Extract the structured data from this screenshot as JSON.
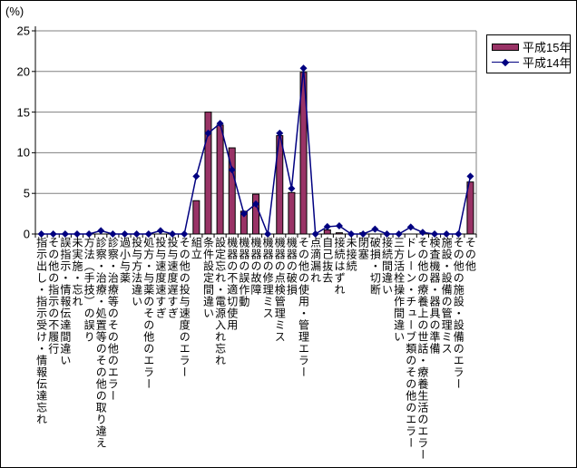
{
  "figure": {
    "unit_label": "(%)",
    "background_color": "#ffffff",
    "border_color": "#000000",
    "gridline_color": "#808080",
    "axis_color": "#000000"
  },
  "legend": {
    "items": [
      {
        "label": "平成15年",
        "type": "bar",
        "color": "#993366"
      },
      {
        "label": "平成14年",
        "type": "line",
        "color": "#000080"
      }
    ]
  },
  "chart_data": {
    "type": "bar",
    "subtype": "bar+line combo",
    "title": "",
    "xlabel": "",
    "ylabel": "(%)",
    "ylim": [
      0,
      25
    ],
    "yticks": [
      0,
      5,
      10,
      15,
      20,
      25
    ],
    "grid": true,
    "legend_position": "top-right",
    "categories": [
      "指示出し・指示受け・情報伝達忘れ",
      "その他の指示の不履行",
      "誤指示・情報伝達間違い",
      "未実施・忘れ",
      "方法（手技）の誤り",
      "診察・治療・処置等のその他の取り違え",
      "診察・治療等のその他のエラー",
      "過小与薬",
      "投与方法違い",
      "処方・与薬のその他のエラー",
      "投与速度速すぎ",
      "投与速度遅すぎ",
      "その他の投与速度のエラー",
      "組立",
      "条件設定間違い",
      "設定忘れ・電源入れ忘れ",
      "機器の不適切使用",
      "機器の誤作動",
      "機器の故障",
      "機器の修理ミス",
      "機器の点検管理ミス",
      "機器の破損",
      "その他の使用・管理エラー",
      "点滴漏れ",
      "自己抜去",
      "接続はずれ",
      "未接続",
      "閉塞",
      "破損・切断",
      "接続間違い",
      "三方活栓操作間違い",
      "ドレーン・チューブ類のその他のエラー",
      "その他の療養上の世話・療養生活のエラー",
      "検査機器・器具の準備",
      "施設・設備の管理ミス",
      "その他の施設・設備のエラー",
      "その他"
    ],
    "series": [
      {
        "name": "平成15年",
        "type": "bar",
        "color": "#993366",
        "values": [
          0,
          0,
          0,
          0,
          0,
          0,
          0,
          0,
          0,
          0,
          0,
          0,
          0,
          4.1,
          15.0,
          13.4,
          10.6,
          2.8,
          4.9,
          0,
          12.1,
          5.1,
          19.9,
          0,
          0.5,
          0.15,
          0,
          0.15,
          0,
          0,
          0,
          0,
          0,
          0,
          0,
          0,
          6.4
        ]
      },
      {
        "name": "平成14年",
        "type": "line",
        "color": "#000080",
        "marker": "diamond",
        "values": [
          0,
          0,
          0,
          0,
          0,
          0.4,
          0,
          0,
          0,
          0,
          0.4,
          0,
          0,
          7.1,
          12.4,
          13.6,
          7.9,
          2.5,
          3.7,
          0,
          12.4,
          5.6,
          20.4,
          0,
          0.9,
          1.0,
          0,
          0,
          0.6,
          0,
          0,
          0.85,
          0.2,
          0,
          0,
          0,
          7.1
        ]
      }
    ]
  }
}
